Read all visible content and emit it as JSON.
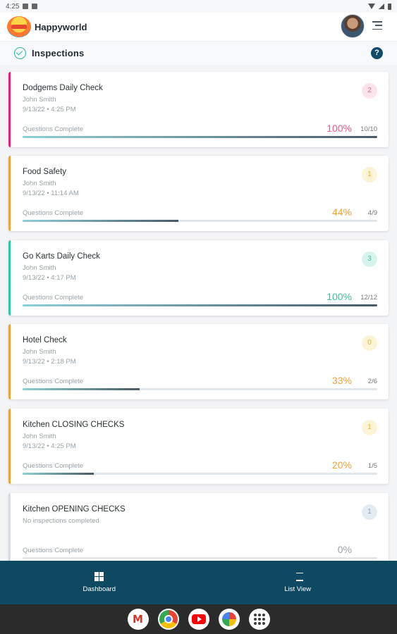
{
  "status_bar": {
    "time": "4:25"
  },
  "app": {
    "name": "Happyworld"
  },
  "page": {
    "title": "Inspections",
    "help_label": "?"
  },
  "inspections": [
    {
      "title": "Dodgems Daily Check",
      "user": "John Smith",
      "date": "9/13/22 • 4:25 PM",
      "badge": "2",
      "label": "Questions Complete",
      "percent_text": "100%",
      "count_text": "10/10",
      "progress": 1.0,
      "accent_color": "#e8207a",
      "badge_bg": "#fde3ec",
      "badge_color": "#e8638f",
      "pct_color": "#ec5a86"
    },
    {
      "title": "Food Safety",
      "user": "John Smith",
      "date": "9/13/22 • 11:14 AM",
      "badge": "1",
      "label": "Questions Complete",
      "percent_text": "44%",
      "count_text": "4/9",
      "progress": 0.44,
      "accent_color": "#f0a23a",
      "badge_bg": "#fdf3d6",
      "badge_color": "#e0b04a",
      "pct_color": "#f0a23a"
    },
    {
      "title": "Go Karts Daily Check",
      "user": "John Smith",
      "date": "9/13/22 • 4:17 PM",
      "badge": "3",
      "label": "Questions Complete",
      "percent_text": "100%",
      "count_text": "12/12",
      "progress": 1.0,
      "accent_color": "#2ec9a6",
      "badge_bg": "#d6f3ec",
      "badge_color": "#3cbf9e",
      "pct_color": "#3cbf9e"
    },
    {
      "title": "Hotel Check",
      "user": "John Smith",
      "date": "9/13/22 • 2:18 PM",
      "badge": "0",
      "label": "Questions Complete",
      "percent_text": "33%",
      "count_text": "2/6",
      "progress": 0.33,
      "accent_color": "#f0a23a",
      "badge_bg": "#fdf3d6",
      "badge_color": "#e0b04a",
      "pct_color": "#f0a23a"
    },
    {
      "title": "Kitchen CLOSING CHECKS",
      "user": "John Smith",
      "date": "9/13/22 • 4:25 PM",
      "badge": "1",
      "label": "Questions Complete",
      "percent_text": "20%",
      "count_text": "1/5",
      "progress": 0.2,
      "accent_color": "#f0a23a",
      "badge_bg": "#fdf3d6",
      "badge_color": "#e0b04a",
      "pct_color": "#f0a23a"
    },
    {
      "title": "Kitchen OPENING CHECKS",
      "user": "No inspections completed",
      "date": "",
      "badge": "1",
      "label": "Questions Complete",
      "percent_text": "0%",
      "count_text": "",
      "progress": 0,
      "accent_color": "#d6dce1",
      "badge_bg": "#e5ebf3",
      "badge_color": "#8da3bd",
      "pct_color": "#9aa3aa"
    }
  ],
  "bottom_nav": {
    "dashboard_label": "Dashboard",
    "list_view_label": "List View"
  },
  "dock": {
    "apps": [
      "gmail-icon",
      "chrome-icon",
      "youtube-icon",
      "photos-icon",
      "app-drawer-icon"
    ]
  }
}
